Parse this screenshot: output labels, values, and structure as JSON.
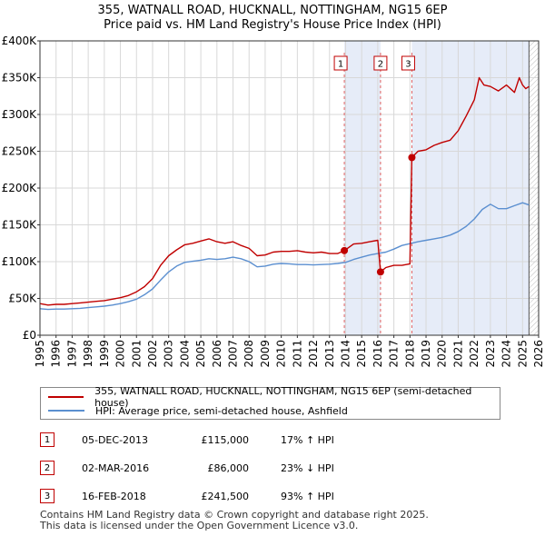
{
  "title": {
    "line1": "355, WATNALL ROAD, HUCKNALL, NOTTINGHAM, NG15 6EP",
    "line2": "Price paid vs. HM Land Registry's House Price Index (HPI)"
  },
  "chart_data": {
    "type": "line",
    "xlim": [
      1995,
      2026
    ],
    "ylim": [
      0,
      400000
    ],
    "y_ticks": [
      {
        "value": 0,
        "label": "£0"
      },
      {
        "value": 50000,
        "label": "£50K"
      },
      {
        "value": 100000,
        "label": "£100K"
      },
      {
        "value": 150000,
        "label": "£150K"
      },
      {
        "value": 200000,
        "label": "£200K"
      },
      {
        "value": 250000,
        "label": "£250K"
      },
      {
        "value": 300000,
        "label": "£300K"
      },
      {
        "value": 350000,
        "label": "£350K"
      },
      {
        "value": 400000,
        "label": "£400K"
      }
    ],
    "x_ticks": [
      "1995",
      "1996",
      "1997",
      "1998",
      "1999",
      "2000",
      "2001",
      "2002",
      "2003",
      "2004",
      "2005",
      "2006",
      "2007",
      "2008",
      "2009",
      "2010",
      "2011",
      "2012",
      "2013",
      "2014",
      "2015",
      "2016",
      "2017",
      "2018",
      "2019",
      "2020",
      "2021",
      "2022",
      "2023",
      "2024",
      "2025",
      "2026"
    ],
    "grid": true,
    "series": [
      {
        "name": "355, WATNALL ROAD, HUCKNALL, NOTTINGHAM, NG15 6EP (semi-detached house)",
        "color": "#c00000",
        "x": [
          1995,
          1995.5,
          1996,
          1996.5,
          1997,
          1997.5,
          1998,
          1998.5,
          1999,
          1999.5,
          2000,
          2000.5,
          2001,
          2001.5,
          2002,
          2002.5,
          2003,
          2003.5,
          2004,
          2004.5,
          2005,
          2005.5,
          2006,
          2006.5,
          2007,
          2007.5,
          2008,
          2008.5,
          2009,
          2009.5,
          2010,
          2010.5,
          2011,
          2011.5,
          2012,
          2012.5,
          2013,
          2013.5,
          2013.92,
          2014.5,
          2015,
          2015.5,
          2016.0,
          2016.17,
          2016.5,
          2017,
          2017.5,
          2018.0,
          2018.12,
          2018.5,
          2019,
          2019.5,
          2020,
          2020.5,
          2021,
          2021.5,
          2022,
          2022.3,
          2022.6,
          2023,
          2023.5,
          2024,
          2024.5,
          2024.8,
          2025,
          2025.2,
          2025.4
        ],
        "values": [
          43000,
          41000,
          42000,
          42000,
          43000,
          44000,
          45000,
          46000,
          47000,
          49000,
          51000,
          54000,
          59000,
          66000,
          77000,
          95000,
          108000,
          116000,
          123000,
          125000,
          128000,
          131000,
          127000,
          125000,
          127000,
          122000,
          118000,
          108000,
          109000,
          113000,
          114000,
          114000,
          115000,
          113000,
          112000,
          113000,
          111000,
          111000,
          115000,
          124000,
          125000,
          127000,
          129000,
          86000,
          92000,
          95000,
          95000,
          97000,
          241500,
          250000,
          252000,
          258000,
          262000,
          265000,
          278000,
          298000,
          320000,
          350000,
          340000,
          338000,
          332000,
          340000,
          330000,
          350000,
          340000,
          335000,
          338000
        ]
      },
      {
        "name": "HPI: Average price, semi-detached house, Ashfield",
        "color": "#5b8fd0",
        "x": [
          1995,
          1995.5,
          1996,
          1996.5,
          1997,
          1997.5,
          1998,
          1998.5,
          1999,
          1999.5,
          2000,
          2000.5,
          2001,
          2001.5,
          2002,
          2002.5,
          2003,
          2003.5,
          2004,
          2004.5,
          2005,
          2005.5,
          2006,
          2006.5,
          2007,
          2007.5,
          2008,
          2008.5,
          2009,
          2009.5,
          2010,
          2010.5,
          2011,
          2011.5,
          2012,
          2012.5,
          2013,
          2013.5,
          2014,
          2014.5,
          2015,
          2015.5,
          2016,
          2016.5,
          2017,
          2017.5,
          2018,
          2018.5,
          2019,
          2019.5,
          2020,
          2020.5,
          2021,
          2021.5,
          2022,
          2022.5,
          2023,
          2023.5,
          2024,
          2024.5,
          2025,
          2025.4
        ],
        "values": [
          36000,
          35000,
          35500,
          35500,
          36000,
          36500,
          37500,
          38500,
          39500,
          41000,
          43000,
          45500,
          49000,
          55000,
          63000,
          75000,
          86000,
          94000,
          99000,
          100500,
          102000,
          104000,
          103000,
          104000,
          106000,
          104000,
          100000,
          93000,
          94000,
          96500,
          97500,
          97000,
          96000,
          96000,
          95500,
          96000,
          96500,
          97500,
          99000,
          103000,
          106000,
          109000,
          111000,
          113000,
          117000,
          122000,
          124500,
          127000,
          129000,
          131000,
          133000,
          136000,
          141000,
          148000,
          158000,
          171000,
          178000,
          172000,
          172000,
          176000,
          180000,
          177000
        ]
      }
    ],
    "sales": [
      {
        "label": "1",
        "x": 2013.92,
        "value": 115000
      },
      {
        "label": "2",
        "x": 2016.17,
        "value": 86000
      },
      {
        "label": "3",
        "x": 2018.12,
        "value": 241500
      }
    ],
    "shade_ranges": [
      [
        2013.92,
        2016.17
      ],
      [
        2018.12,
        2025.4
      ]
    ],
    "hatch_from": 2025.4
  },
  "legend": [
    {
      "label": "355, WATNALL ROAD, HUCKNALL, NOTTINGHAM, NG15 6EP (semi-detached house)",
      "color": "#c00000"
    },
    {
      "label": "HPI: Average price, semi-detached house, Ashfield",
      "color": "#5b8fd0"
    }
  ],
  "transactions": [
    {
      "num": "1",
      "date": "05-DEC-2013",
      "price": "£115,000",
      "hpi": "17% ↑ HPI"
    },
    {
      "num": "2",
      "date": "02-MAR-2016",
      "price": "£86,000",
      "hpi": "23% ↓ HPI"
    },
    {
      "num": "3",
      "date": "16-FEB-2018",
      "price": "£241,500",
      "hpi": "93% ↑ HPI"
    }
  ],
  "footer": {
    "line1": "Contains HM Land Registry data © Crown copyright and database right 2025.",
    "line2": "This data is licensed under the Open Government Licence v3.0."
  }
}
